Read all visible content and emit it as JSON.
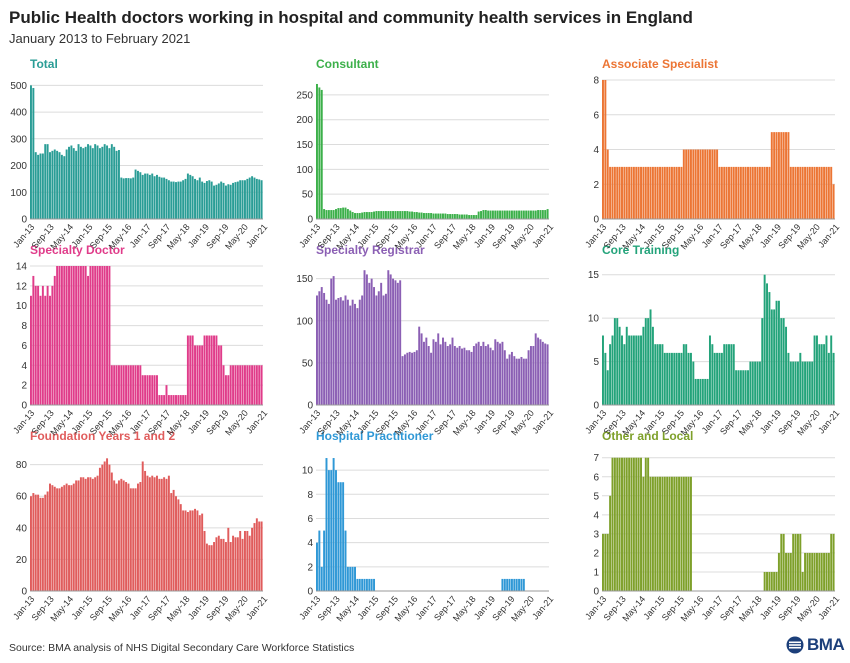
{
  "title": "Public Health doctors working in hospital and community health services in England",
  "subtitle": "January 2013 to February 2021",
  "source": "Source: BMA analysis of NHS Digital Secondary Care Workforce Statistics",
  "logo_text": "BMA",
  "x_tick_labels": [
    "Jan-13",
    "Sep-13",
    "May-14",
    "Jan-15",
    "Sep-15",
    "May-16",
    "Jan-17",
    "Sep-17",
    "May-18",
    "Jan-19",
    "Sep-19",
    "May-20",
    "Jan-21"
  ],
  "chart_data": [
    {
      "type": "bar",
      "title": "Total",
      "color": "#2a9d96",
      "ylim": [
        0,
        520
      ],
      "yticks": [
        0,
        100,
        200,
        300,
        400,
        500
      ],
      "values": [
        500,
        490,
        250,
        240,
        245,
        245,
        280,
        280,
        250,
        255,
        260,
        255,
        250,
        240,
        235,
        260,
        270,
        275,
        265,
        255,
        280,
        270,
        265,
        270,
        280,
        275,
        265,
        280,
        275,
        265,
        270,
        280,
        275,
        265,
        280,
        270,
        255,
        258,
        155,
        152,
        153,
        153,
        152,
        155,
        185,
        180,
        175,
        165,
        170,
        170,
        165,
        170,
        160,
        165,
        158,
        155,
        155,
        150,
        145,
        140,
        140,
        138,
        140,
        140,
        145,
        150,
        170,
        165,
        160,
        150,
        145,
        155,
        140,
        135,
        142,
        145,
        140,
        125,
        128,
        133,
        140,
        135,
        125,
        130,
        128,
        135,
        138,
        140,
        145,
        145,
        145,
        150,
        155,
        160,
        155,
        150,
        148,
        145
      ]
    },
    {
      "type": "bar",
      "title": "Consultant",
      "color": "#3cb04a",
      "ylim": [
        0,
        280
      ],
      "yticks": [
        0,
        50,
        100,
        150,
        200,
        250
      ],
      "values": [
        272,
        265,
        260,
        20,
        18,
        18,
        18,
        18,
        20,
        22,
        22,
        23,
        23,
        20,
        17,
        14,
        12,
        12,
        12,
        13,
        14,
        14,
        14,
        14,
        15,
        16,
        16,
        16,
        16,
        16,
        16,
        16,
        16,
        16,
        16,
        16,
        16,
        16,
        16,
        15,
        15,
        14,
        14,
        13,
        13,
        12,
        12,
        12,
        12,
        11,
        11,
        11,
        11,
        11,
        11,
        10,
        10,
        10,
        10,
        10,
        9,
        9,
        9,
        9,
        8,
        8,
        8,
        8,
        15,
        16,
        18,
        18,
        17,
        17,
        17,
        17,
        17,
        17,
        17,
        17,
        17,
        17,
        17,
        17,
        17,
        17,
        17,
        17,
        17,
        17,
        17,
        17,
        17,
        18,
        18,
        18,
        18,
        20
      ]
    },
    {
      "type": "bar",
      "title": "Associate Specialist",
      "color": "#ec7534",
      "ylim": [
        0,
        8
      ],
      "yticks": [
        0,
        2,
        4,
        6,
        8
      ],
      "values": [
        8,
        8,
        4,
        3,
        3,
        3,
        3,
        3,
        3,
        3,
        3,
        3,
        3,
        3,
        3,
        3,
        3,
        3,
        3,
        3,
        3,
        3,
        3,
        3,
        3,
        3,
        3,
        3,
        3,
        3,
        3,
        3,
        3,
        3,
        4,
        4,
        4,
        4,
        4,
        4,
        4,
        4,
        4,
        4,
        4,
        4,
        4,
        4,
        4,
        3,
        3,
        3,
        3,
        3,
        3,
        3,
        3,
        3,
        3,
        3,
        3,
        3,
        3,
        3,
        3,
        3,
        3,
        3,
        3,
        3,
        3,
        5,
        5,
        5,
        5,
        5,
        5,
        5,
        5,
        3,
        3,
        3,
        3,
        3,
        3,
        3,
        3,
        3,
        3,
        3,
        3,
        3,
        3,
        3,
        3,
        3,
        3,
        2
      ]
    },
    {
      "type": "bar",
      "title": "Specialty Doctor",
      "color": "#e03c8a",
      "ylim": [
        0,
        14
      ],
      "yticks": [
        0,
        2,
        4,
        6,
        8,
        10,
        12,
        14
      ],
      "values": [
        11,
        13,
        12,
        12,
        11,
        12,
        11,
        12,
        11,
        12,
        13,
        14,
        14,
        14,
        14,
        14,
        14,
        14,
        14,
        14,
        14,
        14,
        14,
        14,
        13,
        14,
        14,
        14,
        14,
        14,
        14,
        14,
        14,
        14,
        4,
        4,
        4,
        4,
        4,
        4,
        4,
        4,
        4,
        4,
        4,
        4,
        4,
        3,
        3,
        3,
        3,
        3,
        3,
        3,
        1,
        1,
        1,
        2,
        1,
        1,
        1,
        1,
        1,
        1,
        1,
        1,
        7,
        7,
        7,
        6,
        6,
        6,
        6,
        7,
        7,
        7,
        7,
        7,
        7,
        6,
        6,
        4,
        3,
        3,
        4,
        4,
        4,
        4,
        4,
        4,
        4,
        4,
        4,
        4,
        4,
        4,
        4,
        4
      ]
    },
    {
      "type": "bar",
      "title": "Specialty Registrar",
      "color": "#8b5fb4",
      "ylim": [
        0,
        165
      ],
      "yticks": [
        0,
        50,
        100,
        150
      ],
      "values": [
        130,
        135,
        140,
        133,
        125,
        120,
        150,
        153,
        125,
        127,
        128,
        124,
        130,
        125,
        118,
        125,
        120,
        115,
        125,
        130,
        160,
        155,
        145,
        150,
        140,
        130,
        135,
        145,
        130,
        132,
        160,
        155,
        150,
        148,
        145,
        148,
        58,
        60,
        62,
        63,
        62,
        63,
        65,
        93,
        85,
        75,
        80,
        70,
        62,
        78,
        75,
        85,
        72,
        80,
        75,
        70,
        72,
        80,
        70,
        68,
        70,
        67,
        68,
        65,
        65,
        63,
        70,
        73,
        75,
        70,
        75,
        70,
        72,
        68,
        65,
        78,
        75,
        73,
        75,
        65,
        55,
        60,
        63,
        58,
        55,
        55,
        57,
        55,
        55,
        65,
        70,
        70,
        85,
        80,
        78,
        75,
        73,
        72
      ]
    },
    {
      "type": "bar",
      "title": "Core Training",
      "color": "#23a37a",
      "ylim": [
        0,
        16
      ],
      "yticks": [
        0,
        5,
        10,
        15
      ],
      "values": [
        8,
        6,
        4,
        7,
        8,
        10,
        10,
        9,
        8,
        7,
        9,
        8,
        8,
        8,
        8,
        8,
        8,
        9,
        10,
        10,
        11,
        9,
        7,
        7,
        7,
        7,
        6,
        6,
        6,
        6,
        6,
        6,
        6,
        6,
        7,
        7,
        6,
        6,
        5,
        3,
        3,
        3,
        3,
        3,
        3,
        8,
        7,
        6,
        6,
        6,
        6,
        7,
        7,
        7,
        7,
        7,
        4,
        4,
        4,
        4,
        4,
        4,
        5,
        5,
        5,
        5,
        5,
        10,
        15,
        14,
        13,
        11,
        11,
        12,
        12,
        10,
        10,
        9,
        6,
        5,
        5,
        5,
        5,
        6,
        5,
        5,
        5,
        5,
        5,
        8,
        8,
        7,
        7,
        7,
        8,
        6,
        8,
        6
      ]
    },
    {
      "type": "bar",
      "title": "Foundation Years 1 and 2",
      "color": "#e05c5c",
      "ylim": [
        0,
        88
      ],
      "yticks": [
        0,
        20,
        40,
        60,
        80
      ],
      "values": [
        60,
        62,
        61,
        61,
        59,
        59,
        61,
        63,
        68,
        67,
        66,
        65,
        65,
        66,
        67,
        68,
        67,
        67,
        68,
        70,
        70,
        72,
        72,
        71,
        72,
        72,
        71,
        72,
        73,
        78,
        80,
        82,
        84,
        80,
        75,
        70,
        68,
        70,
        71,
        70,
        69,
        68,
        65,
        65,
        65,
        68,
        69,
        82,
        76,
        73,
        72,
        73,
        72,
        73,
        71,
        71,
        72,
        71,
        73,
        62,
        64,
        60,
        58,
        55,
        51,
        51,
        50,
        51,
        51,
        52,
        51,
        48,
        49,
        38,
        30,
        29,
        29,
        31,
        34,
        35,
        33,
        33,
        31,
        40,
        31,
        35,
        34,
        34,
        38,
        33,
        38,
        38,
        35,
        40,
        43,
        46,
        44,
        44
      ]
    },
    {
      "type": "bar",
      "title": "Hospital Practitioner",
      "color": "#2f98d6",
      "ylim": [
        0,
        11.5
      ],
      "yticks": [
        0,
        2,
        4,
        6,
        8,
        10
      ],
      "values": [
        4,
        5,
        2,
        5,
        11,
        10,
        10,
        11,
        10,
        9,
        9,
        9,
        5,
        2,
        2,
        2,
        2,
        1,
        1,
        1,
        1,
        1,
        1,
        1,
        1,
        0,
        0,
        0,
        0,
        0,
        0,
        0,
        0,
        0,
        0,
        0,
        0,
        0,
        0,
        0,
        0,
        0,
        0,
        0,
        0,
        0,
        0,
        0,
        0,
        0,
        0,
        0,
        0,
        0,
        0,
        0,
        0,
        0,
        0,
        0,
        0,
        0,
        0,
        0,
        0,
        0,
        0,
        0,
        0,
        0,
        0,
        0,
        0,
        0,
        0,
        0,
        0,
        0,
        1,
        1,
        1,
        1,
        1,
        1,
        1,
        1,
        1,
        1,
        0,
        0,
        0,
        0,
        0,
        0,
        0,
        0,
        0,
        0
      ]
    },
    {
      "type": "bar",
      "title": "Other and Local",
      "color": "#7ea02a",
      "ylim": [
        0,
        7.3
      ],
      "yticks": [
        0,
        1,
        2,
        3,
        4,
        5,
        6,
        7
      ],
      "values": [
        3,
        3,
        3,
        5,
        7,
        7,
        7,
        7,
        7,
        7,
        7,
        7,
        7,
        7,
        7,
        7,
        7,
        6,
        7,
        7,
        6,
        6,
        6,
        6,
        6,
        6,
        6,
        6,
        6,
        6,
        6,
        6,
        6,
        6,
        6,
        6,
        6,
        6,
        0,
        0,
        0,
        0,
        0,
        0,
        0,
        0,
        0,
        0,
        0,
        0,
        0,
        0,
        0,
        0,
        0,
        0,
        0,
        0,
        0,
        0,
        0,
        0,
        0,
        0,
        0,
        0,
        0,
        0,
        1,
        1,
        1,
        1,
        1,
        1,
        2,
        3,
        3,
        2,
        2,
        2,
        3,
        3,
        3,
        3,
        1,
        2,
        2,
        2,
        2,
        2,
        2,
        2,
        2,
        2,
        2,
        2,
        3,
        3
      ]
    }
  ]
}
